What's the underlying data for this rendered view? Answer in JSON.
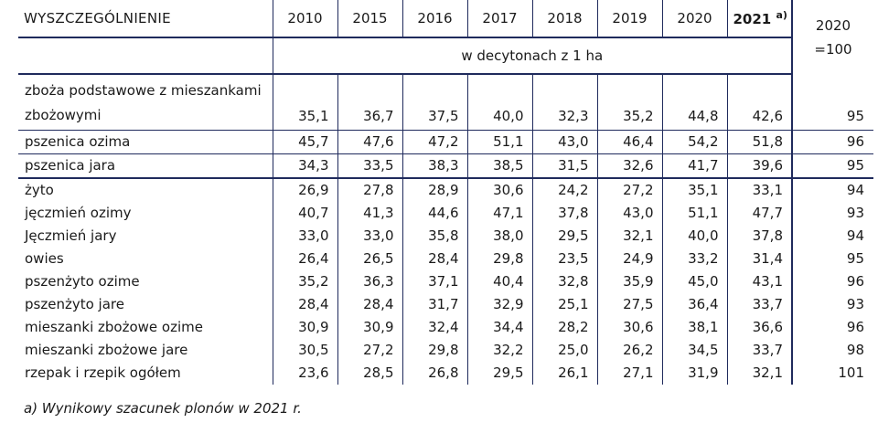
{
  "header": {
    "label": "WYSZCZEGÓLNIENIE",
    "years": [
      "2010",
      "2015",
      "2016",
      "2017",
      "2018",
      "2019",
      "2020"
    ],
    "highlight_year": "2021",
    "highlight_sup": "a)",
    "index_line1": "2020",
    "index_line2": "=100",
    "unit": "w decytonach z 1 ha"
  },
  "rows": [
    {
      "name": "zboża podstawowe z mieszankami zbożowymi",
      "values": [
        "35,1",
        "36,7",
        "37,5",
        "40,0",
        "32,3",
        "35,2",
        "44,8",
        "42,6"
      ],
      "index": "95"
    },
    {
      "name": "pszenica ozima",
      "values": [
        "45,7",
        "47,6",
        "47,2",
        "51,1",
        "43,0",
        "46,4",
        "54,2",
        "51,8"
      ],
      "index": "96"
    },
    {
      "name": "pszenica jara",
      "values": [
        "34,3",
        "33,5",
        "38,3",
        "38,5",
        "31,5",
        "32,6",
        "41,7",
        "39,6"
      ],
      "index": "95"
    },
    {
      "name": "żyto",
      "values": [
        "26,9",
        "27,8",
        "28,9",
        "30,6",
        "24,2",
        "27,2",
        "35,1",
        "33,1"
      ],
      "index": "94"
    },
    {
      "name": "jęczmień ozimy",
      "values": [
        "40,7",
        "41,3",
        "44,6",
        "47,1",
        "37,8",
        "43,0",
        "51,1",
        "47,7"
      ],
      "index": "93"
    },
    {
      "name": "Jęczmień jary",
      "values": [
        "33,0",
        "33,0",
        "35,8",
        "38,0",
        "29,5",
        "32,1",
        "40,0",
        "37,8"
      ],
      "index": "94"
    },
    {
      "name": "owies",
      "values": [
        "26,4",
        "26,5",
        "28,4",
        "29,8",
        "23,5",
        "24,9",
        "33,2",
        "31,4"
      ],
      "index": "95"
    },
    {
      "name": "pszenżyto ozime",
      "values": [
        "35,2",
        "36,3",
        "37,1",
        "40,4",
        "32,8",
        "35,9",
        "45,0",
        "43,1"
      ],
      "index": "96"
    },
    {
      "name": "pszenżyto jare",
      "values": [
        "28,4",
        "28,4",
        "31,7",
        "32,9",
        "25,1",
        "27,5",
        "36,4",
        "33,7"
      ],
      "index": "93"
    },
    {
      "name": "mieszanki zbożowe ozime",
      "values": [
        "30,9",
        "30,9",
        "32,4",
        "34,4",
        "28,2",
        "30,6",
        "38,1",
        "36,6"
      ],
      "index": "96"
    },
    {
      "name": "mieszanki zbożowe jare",
      "values": [
        "30,5",
        "27,2",
        "29,8",
        "32,2",
        "25,0",
        "26,2",
        "34,5",
        "33,7"
      ],
      "index": "98"
    },
    {
      "name": "rzepak i rzepik ogółem",
      "values": [
        "23,6",
        "28,5",
        "26,8",
        "29,5",
        "26,1",
        "27,1",
        "31,9",
        "32,1"
      ],
      "index": "101"
    }
  ],
  "footnote": "a) Wynikowy szacunek plonów w 2021 r."
}
